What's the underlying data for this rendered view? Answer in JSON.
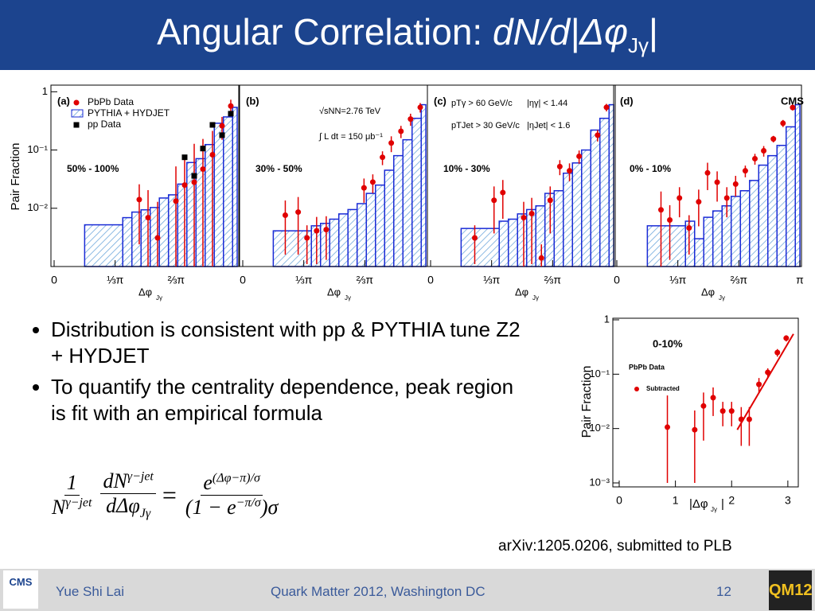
{
  "header": {
    "title": "Angular Correlation: ",
    "title_math": "dN/d|Δφ",
    "title_sub": "Jγ",
    "title_end": "|"
  },
  "bullets": [
    "Distribution is consistent with pp & PYTHIA tune Z2 + HYDJET",
    "To quantify the centrality dependence, peak region is fit with an empirical formula"
  ],
  "formula": {
    "frac1": {
      "num": "1",
      "den": "N",
      "den_sup": "γ−jet"
    },
    "frac2": {
      "num": "dN",
      "num_sup": "γ−jet",
      "den": "dΔφ",
      "den_sub": "Jγ"
    },
    "equals": "=",
    "frac3": {
      "num": "e",
      "num_sup": "(Δφ−π)/σ",
      "den": "(1 − e",
      "den_sup": "−π/σ",
      "den_end": ")σ"
    }
  },
  "citation": "arXiv:1205.0206, submitted to PLB",
  "footer": {
    "author": "Yue Shi Lai",
    "conference": "Quark Matter 2012, Washington DC",
    "page": "12",
    "logo_left": "CMS",
    "logo_right": "QM12"
  },
  "chart_data": [
    {
      "type": "histogram",
      "panel_label": "(a)",
      "centrality": "50% - 100%",
      "ylabel": "Pair Fraction",
      "xlabel": "Δφ",
      "xlabel_sub": "Jγ",
      "log_y": true,
      "legend": "upper left",
      "xlim": [
        0,
        3.1416
      ],
      "ylim": [
        0.001,
        1.3
      ],
      "xticks": [
        0,
        {
          "value": 1.0472,
          "label": "⅓π"
        },
        {
          "value": 2.0944,
          "label": "⅔π"
        }
      ],
      "yticks": [
        1,
        {
          "value": 0.1,
          "label": "10⁻¹"
        },
        {
          "value": 0.01,
          "label": "10⁻²"
        }
      ],
      "hist_name": "PYTHIA + HYDJET",
      "hist_color": "#1a2bd6",
      "bins": [
        0.524,
        1.178,
        1.335,
        1.492,
        1.649,
        1.806,
        1.963,
        2.121,
        2.278,
        2.435,
        2.592,
        2.749,
        2.906,
        3.063,
        3.142
      ],
      "values": [
        0.0052,
        0.0069,
        0.0086,
        0.0094,
        0.0103,
        0.015,
        0.017,
        0.026,
        0.061,
        0.071,
        0.124,
        0.288,
        0.37,
        0.54
      ],
      "series": [
        {
          "name": "PbPb Data",
          "color": "#e00000",
          "marker": "circle",
          "x": [
            1.461,
            1.612,
            1.776,
            2.09,
            2.24,
            2.404,
            2.554,
            2.718,
            2.882,
            3.032
          ],
          "values": [
            0.0141,
            0.0069,
            0.0031,
            0.0133,
            0.025,
            0.028,
            0.047,
            0.083,
            0.26,
            0.57
          ],
          "errors": [
            0.0117,
            0.0136,
            0.0098,
            0.039,
            0.046,
            0.1,
            0.108,
            0.13,
            0.11,
            0.16
          ]
        },
        {
          "name": "pp Data",
          "color": "#000000",
          "marker": "square",
          "x": [
            2.24,
            2.404,
            2.554,
            2.718,
            2.882,
            3.032
          ],
          "values": [
            0.075,
            0.036,
            0.106,
            0.27,
            0.18,
            0.42
          ]
        }
      ]
    },
    {
      "type": "histogram",
      "panel_label": "(b)",
      "centrality": "30% - 50%",
      "notes": [
        "√sNN=2.76 TeV",
        "∫ L dt = 150 μb⁻¹"
      ],
      "xlabel": "Δφ",
      "xlabel_sub": "Jγ",
      "log_y": true,
      "xlim": [
        0,
        3.1416
      ],
      "ylim": [
        0.001,
        1.3
      ],
      "xticks": [
        0,
        {
          "value": 1.0472,
          "label": "⅓π"
        },
        {
          "value": 2.0944,
          "label": "⅔π"
        }
      ],
      "hist_color": "#1a2bd6",
      "bins": [
        0.524,
        1.178,
        1.335,
        1.492,
        1.649,
        1.806,
        1.963,
        2.121,
        2.278,
        2.435,
        2.592,
        2.749,
        2.906,
        3.063,
        3.142
      ],
      "values": [
        0.0041,
        0.005,
        0.0055,
        0.0065,
        0.008,
        0.0095,
        0.012,
        0.018,
        0.025,
        0.045,
        0.08,
        0.15,
        0.35,
        0.6
      ],
      "series": [
        {
          "color": "#e00000",
          "marker": "circle",
          "x": [
            0.73,
            0.951,
            1.102,
            1.268,
            1.433,
            2.081,
            2.232,
            2.398,
            2.549,
            2.715,
            2.88,
            3.046
          ],
          "values": [
            0.0076,
            0.0086,
            0.0031,
            0.0041,
            0.0043,
            0.0224,
            0.0282,
            0.075,
            0.132,
            0.21,
            0.34,
            0.54
          ],
          "errors": [
            0.006,
            0.007,
            0.002,
            0.003,
            0.003,
            0.01,
            0.01,
            0.02,
            0.04,
            0.05,
            0.08,
            0.1
          ]
        }
      ]
    },
    {
      "type": "histogram",
      "panel_label": "(c)",
      "centrality": "10% - 30%",
      "notes": [
        "pTγ > 60 GeV/c",
        "|ηγ| < 1.44",
        "pTJet > 30 GeV/c",
        "|ηJet| < 1.6"
      ],
      "xlabel": "Δφ",
      "xlabel_sub": "Jγ",
      "log_y": true,
      "xlim": [
        0,
        3.1416
      ],
      "ylim": [
        0.001,
        1.3
      ],
      "xticks": [
        0,
        {
          "value": 1.0472,
          "label": "⅓π"
        },
        {
          "value": 2.0944,
          "label": "⅔π"
        }
      ],
      "hist_color": "#1a2bd6",
      "bins": [
        0.524,
        1.178,
        1.335,
        1.492,
        1.649,
        1.806,
        1.963,
        2.121,
        2.278,
        2.435,
        2.592,
        2.749,
        2.906,
        3.063,
        3.142
      ],
      "values": [
        0.0045,
        0.006,
        0.0065,
        0.008,
        0.0095,
        0.011,
        0.018,
        0.02,
        0.04,
        0.06,
        0.1,
        0.22,
        0.35,
        0.6
      ],
      "series": [
        {
          "color": "#e00000",
          "marker": "circle",
          "x": [
            0.758,
            1.089,
            1.24,
            1.598,
            1.736,
            1.902,
            2.053,
            2.218,
            2.384,
            2.549,
            2.866,
            3.018
          ],
          "values": [
            0.0031,
            0.0137,
            0.0186,
            0.0069,
            0.0081,
            0.0014,
            0.0137,
            0.052,
            0.044,
            0.078,
            0.18,
            0.54
          ],
          "errors": [
            0.002,
            0.01,
            0.012,
            0.006,
            0.007,
            0.001,
            0.01,
            0.015,
            0.015,
            0.02,
            0.04,
            0.08
          ]
        }
      ]
    },
    {
      "type": "histogram",
      "panel_label": "(d)",
      "centrality": "0% - 10%",
      "notes": [
        "CMS"
      ],
      "xlabel": "Δφ",
      "xlabel_sub": "Jγ",
      "log_y": true,
      "xlim": [
        0,
        3.1416
      ],
      "ylim": [
        0.001,
        1.3
      ],
      "xticks": [
        0,
        {
          "value": 1.0472,
          "label": "⅓π"
        },
        {
          "value": 2.0944,
          "label": "⅔π"
        },
        {
          "value": 3.1416,
          "label": "π"
        }
      ],
      "hist_color": "#1a2bd6",
      "bins": [
        0.524,
        1.178,
        1.335,
        1.492,
        1.649,
        1.806,
        1.963,
        2.121,
        2.278,
        2.435,
        2.592,
        2.749,
        2.906,
        3.063,
        3.142
      ],
      "values": [
        0.005,
        0.006,
        0.003,
        0.007,
        0.009,
        0.011,
        0.016,
        0.02,
        0.03,
        0.055,
        0.08,
        0.12,
        0.25,
        0.6
      ],
      "series": [
        {
          "color": "#e00000",
          "marker": "circle",
          "x": [
            0.758,
            0.909,
            1.075,
            1.24,
            1.405,
            1.557,
            1.722,
            1.888,
            2.039,
            2.205,
            2.37,
            2.521,
            2.687,
            2.852,
            3.018
          ],
          "values": [
            0.0094,
            0.0063,
            0.015,
            0.0046,
            0.0129,
            0.0405,
            0.028,
            0.015,
            0.026,
            0.044,
            0.071,
            0.097,
            0.155,
            0.288,
            0.537
          ],
          "errors": [
            0.01,
            0.005,
            0.008,
            0.003,
            0.008,
            0.02,
            0.015,
            0.008,
            0.01,
            0.01,
            0.015,
            0.02,
            0.02,
            0.04,
            0.06
          ]
        }
      ]
    },
    {
      "type": "scatter",
      "title": "0-10%",
      "subtitle": "PbPb Data",
      "ylabel": "Pair Fraction",
      "xlabel": "|Δφ",
      "xlabel_sub": "Jγ",
      "xlabel_end": "|",
      "log_y": true,
      "xlim": [
        0,
        3.2
      ],
      "ylim": [
        0.001,
        1
      ],
      "xticks": [
        0,
        1,
        2,
        3
      ],
      "yticks": [
        1,
        {
          "value": 0.1,
          "label": "10⁻¹"
        },
        {
          "value": 0.01,
          "label": "10⁻²"
        },
        {
          "value": 0.001,
          "label": "10⁻³"
        }
      ],
      "series": [
        {
          "name": "Subtracted",
          "color": "#e00000",
          "x": [
            0.857,
            1.343,
            1.5,
            1.671,
            1.843,
            2.0,
            2.171,
            2.314,
            2.486,
            2.643,
            2.814,
            2.971
          ],
          "values": [
            0.0106,
            0.0095,
            0.026,
            0.037,
            0.021,
            0.021,
            0.0148,
            0.0148,
            0.065,
            0.108,
            0.25,
            0.46
          ],
          "errors": [
            0.03,
            0.012,
            0.02,
            0.02,
            0.01,
            0.01,
            0.01,
            0.01,
            0.02,
            0.02,
            0.04,
            0.06
          ]
        }
      ],
      "fit": {
        "x": [
          2.1,
          3.1
        ],
        "values": [
          0.0095,
          0.55
        ],
        "color": "#e00000"
      }
    }
  ]
}
